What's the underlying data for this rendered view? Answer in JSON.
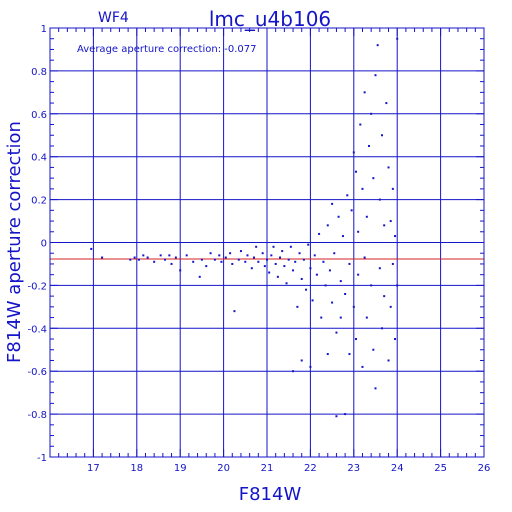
{
  "chart_data": {
    "type": "scatter",
    "title": "lmc_u4b106",
    "chip_label": "WF4",
    "annotation": "Average aperture correction:  -0.077",
    "xlabel": "F814W",
    "ylabel": "F814W aperture correction",
    "xlim": [
      16,
      26
    ],
    "ylim": [
      -1,
      1
    ],
    "x_ticks": [
      "17",
      "18",
      "19",
      "20",
      "21",
      "22",
      "23",
      "24",
      "25",
      "26"
    ],
    "y_ticks": [
      "1",
      "0.8",
      "0.6",
      "0.4",
      "0.2",
      "0",
      "-0.2",
      "-0.4",
      "-0.6",
      "-0.8",
      "-1"
    ],
    "grid": true,
    "reference_line": {
      "y": -0.077,
      "color": "#d42020"
    },
    "colors": {
      "axes": "#1414c8",
      "points": "#1414c8",
      "text": "#1414c8",
      "reference": "#d42020"
    },
    "points": [
      [
        16.95,
        -0.03
      ],
      [
        17.2,
        -0.07
      ],
      [
        17.85,
        -0.08
      ],
      [
        17.95,
        -0.07
      ],
      [
        18.05,
        -0.08
      ],
      [
        18.15,
        -0.06
      ],
      [
        18.25,
        -0.07
      ],
      [
        18.4,
        -0.09
      ],
      [
        18.55,
        -0.06
      ],
      [
        18.65,
        -0.08
      ],
      [
        18.75,
        -0.06
      ],
      [
        18.8,
        -0.1
      ],
      [
        18.9,
        -0.07
      ],
      [
        19.0,
        -0.13
      ],
      [
        19.15,
        -0.06
      ],
      [
        19.3,
        -0.09
      ],
      [
        19.45,
        -0.16
      ],
      [
        19.5,
        -0.08
      ],
      [
        19.6,
        -0.11
      ],
      [
        19.7,
        -0.05
      ],
      [
        19.8,
        -0.08
      ],
      [
        19.9,
        -0.06
      ],
      [
        19.95,
        -0.09
      ],
      [
        20.05,
        -0.07
      ],
      [
        20.15,
        -0.05
      ],
      [
        20.2,
        -0.1
      ],
      [
        20.25,
        -0.32
      ],
      [
        20.35,
        -0.08
      ],
      [
        20.4,
        -0.04
      ],
      [
        20.5,
        -0.09
      ],
      [
        20.55,
        -0.06
      ],
      [
        20.65,
        -0.12
      ],
      [
        20.7,
        -0.07
      ],
      [
        20.75,
        -0.02
      ],
      [
        20.8,
        -0.09
      ],
      [
        20.9,
        -0.05
      ],
      [
        20.95,
        -0.11
      ],
      [
        21.0,
        -0.08
      ],
      [
        21.05,
        -0.14
      ],
      [
        21.1,
        -0.06
      ],
      [
        21.15,
        -0.02
      ],
      [
        21.2,
        -0.1
      ],
      [
        21.25,
        -0.16
      ],
      [
        21.3,
        -0.07
      ],
      [
        21.35,
        -0.04
      ],
      [
        21.4,
        -0.11
      ],
      [
        21.45,
        -0.19
      ],
      [
        21.5,
        -0.08
      ],
      [
        21.55,
        -0.02
      ],
      [
        21.6,
        -0.13
      ],
      [
        21.6,
        -0.6
      ],
      [
        21.65,
        -0.09
      ],
      [
        21.7,
        -0.3
      ],
      [
        21.75,
        -0.05
      ],
      [
        21.8,
        -0.17
      ],
      [
        21.8,
        -0.55
      ],
      [
        21.85,
        -0.08
      ],
      [
        21.9,
        -0.22
      ],
      [
        21.95,
        -0.01
      ],
      [
        22.0,
        -0.12
      ],
      [
        22.0,
        -0.58
      ],
      [
        22.05,
        -0.27
      ],
      [
        22.1,
        -0.06
      ],
      [
        22.15,
        -0.15
      ],
      [
        22.2,
        0.04
      ],
      [
        22.25,
        -0.35
      ],
      [
        22.3,
        -0.09
      ],
      [
        22.35,
        -0.2
      ],
      [
        22.4,
        0.08
      ],
      [
        22.4,
        -0.52
      ],
      [
        22.45,
        -0.13
      ],
      [
        22.5,
        -0.28
      ],
      [
        22.5,
        0.18
      ],
      [
        22.55,
        -0.05
      ],
      [
        22.6,
        -0.42
      ],
      [
        22.6,
        -0.81
      ],
      [
        22.65,
        0.12
      ],
      [
        22.7,
        -0.18
      ],
      [
        22.7,
        -0.35
      ],
      [
        22.75,
        0.03
      ],
      [
        22.8,
        -0.24
      ],
      [
        22.8,
        -0.8
      ],
      [
        22.85,
        0.22
      ],
      [
        22.9,
        -0.1
      ],
      [
        22.9,
        -0.52
      ],
      [
        22.95,
        0.15
      ],
      [
        23.0,
        -0.3
      ],
      [
        23.0,
        0.42
      ],
      [
        23.05,
        -0.45
      ],
      [
        23.05,
        0.33
      ],
      [
        23.1,
        -0.15
      ],
      [
        23.1,
        0.05
      ],
      [
        23.15,
        0.55
      ],
      [
        23.2,
        -0.58
      ],
      [
        23.2,
        0.25
      ],
      [
        23.25,
        -0.07
      ],
      [
        23.25,
        0.7
      ],
      [
        23.3,
        -0.35
      ],
      [
        23.3,
        0.12
      ],
      [
        23.35,
        0.45
      ],
      [
        23.4,
        -0.2
      ],
      [
        23.4,
        0.6
      ],
      [
        23.45,
        -0.5
      ],
      [
        23.45,
        0.3
      ],
      [
        23.5,
        -0.68
      ],
      [
        23.5,
        0.78
      ],
      [
        23.55,
        0.92
      ],
      [
        23.6,
        -0.12
      ],
      [
        23.6,
        0.2
      ],
      [
        23.65,
        -0.4
      ],
      [
        23.65,
        0.5
      ],
      [
        23.7,
        -0.25
      ],
      [
        23.7,
        0.08
      ],
      [
        23.75,
        0.65
      ],
      [
        23.8,
        -0.55
      ],
      [
        23.8,
        0.35
      ],
      [
        23.85,
        -0.3
      ],
      [
        23.85,
        0.1
      ],
      [
        23.9,
        -0.1
      ],
      [
        23.9,
        0.25
      ],
      [
        23.95,
        -0.45
      ],
      [
        23.95,
        0.03
      ],
      [
        24.0,
        0.95
      ],
      [
        24.0,
        -0.2
      ]
    ]
  }
}
